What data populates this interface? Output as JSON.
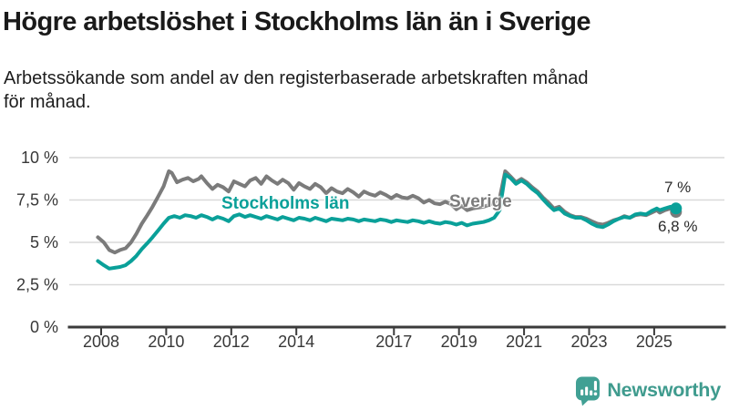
{
  "header": {
    "title": "Högre arbetslöshet i Stockholms län än i Sverige",
    "subtitle_lines": [
      "Arbetssökande som andel av den registerbaserade arbetskraften månad",
      "för månad."
    ]
  },
  "branding": {
    "name": "Newsworthy",
    "icon": "bar-chart-speech-bubble-icon",
    "brand_color": "#3F9B8E"
  },
  "colors": {
    "stockholm_line": "#0AA099",
    "sverige_line": "#7B7B7B",
    "grid": "#D9D9D9",
    "axis": "#3B3B3B"
  },
  "chart_data": {
    "type": "line",
    "unit": "%",
    "grid": "horizontal",
    "legend": "inline-labels",
    "x_range": [
      2007.9,
      2025.75
    ],
    "y_range": [
      0,
      10
    ],
    "y_ticks": [
      {
        "value": 0,
        "label": "0 %"
      },
      {
        "value": 2.5,
        "label": "2,5 %"
      },
      {
        "value": 5,
        "label": "5 %"
      },
      {
        "value": 7.5,
        "label": "7,5 %"
      },
      {
        "value": 10,
        "label": "10 %"
      }
    ],
    "x_ticks": [
      {
        "value": 2008,
        "label": "2008"
      },
      {
        "value": 2010,
        "label": "2010"
      },
      {
        "value": 2012,
        "label": "2012"
      },
      {
        "value": 2014,
        "label": "2014"
      },
      {
        "value": 2017,
        "label": "2017"
      },
      {
        "value": 2019,
        "label": "2019"
      },
      {
        "value": 2021,
        "label": "2021"
      },
      {
        "value": 2023,
        "label": "2023"
      },
      {
        "value": 2025,
        "label": "2025"
      }
    ],
    "series": [
      {
        "name": "Sverige",
        "color": "#7B7B7B",
        "end_value": 6.8,
        "end_value_label": "6,8 %",
        "points": [
          [
            2007.9,
            5.3
          ],
          [
            2008.08,
            5.0
          ],
          [
            2008.25,
            4.55
          ],
          [
            2008.42,
            4.4
          ],
          [
            2008.58,
            4.55
          ],
          [
            2008.75,
            4.65
          ],
          [
            2008.92,
            5.0
          ],
          [
            2009.08,
            5.5
          ],
          [
            2009.25,
            6.1
          ],
          [
            2009.42,
            6.6
          ],
          [
            2009.58,
            7.1
          ],
          [
            2009.75,
            7.7
          ],
          [
            2009.92,
            8.3
          ],
          [
            2010.08,
            9.2
          ],
          [
            2010.17,
            9.1
          ],
          [
            2010.33,
            8.55
          ],
          [
            2010.5,
            8.7
          ],
          [
            2010.67,
            8.8
          ],
          [
            2010.83,
            8.6
          ],
          [
            2011.0,
            8.75
          ],
          [
            2011.08,
            8.9
          ],
          [
            2011.25,
            8.5
          ],
          [
            2011.42,
            8.15
          ],
          [
            2011.58,
            8.4
          ],
          [
            2011.75,
            8.25
          ],
          [
            2011.92,
            8.0
          ],
          [
            2012.08,
            8.6
          ],
          [
            2012.25,
            8.45
          ],
          [
            2012.42,
            8.3
          ],
          [
            2012.58,
            8.65
          ],
          [
            2012.75,
            8.8
          ],
          [
            2012.92,
            8.45
          ],
          [
            2013.08,
            8.9
          ],
          [
            2013.25,
            8.65
          ],
          [
            2013.42,
            8.45
          ],
          [
            2013.58,
            8.7
          ],
          [
            2013.75,
            8.5
          ],
          [
            2013.92,
            8.1
          ],
          [
            2014.08,
            8.5
          ],
          [
            2014.25,
            8.3
          ],
          [
            2014.42,
            8.15
          ],
          [
            2014.58,
            8.45
          ],
          [
            2014.75,
            8.25
          ],
          [
            2014.92,
            7.9
          ],
          [
            2015.08,
            8.2
          ],
          [
            2015.25,
            8.0
          ],
          [
            2015.42,
            7.9
          ],
          [
            2015.58,
            8.15
          ],
          [
            2015.75,
            7.95
          ],
          [
            2015.92,
            7.7
          ],
          [
            2016.08,
            8.0
          ],
          [
            2016.25,
            7.85
          ],
          [
            2016.42,
            7.75
          ],
          [
            2016.58,
            7.95
          ],
          [
            2016.75,
            7.8
          ],
          [
            2016.92,
            7.6
          ],
          [
            2017.08,
            7.8
          ],
          [
            2017.25,
            7.65
          ],
          [
            2017.42,
            7.6
          ],
          [
            2017.58,
            7.75
          ],
          [
            2017.75,
            7.6
          ],
          [
            2017.92,
            7.35
          ],
          [
            2018.08,
            7.5
          ],
          [
            2018.25,
            7.3
          ],
          [
            2018.42,
            7.25
          ],
          [
            2018.58,
            7.4
          ],
          [
            2018.75,
            7.25
          ],
          [
            2018.92,
            6.95
          ],
          [
            2019.08,
            7.15
          ],
          [
            2019.25,
            6.9
          ],
          [
            2019.42,
            7.0
          ],
          [
            2019.58,
            7.05
          ],
          [
            2019.75,
            7.1
          ],
          [
            2019.92,
            7.2
          ],
          [
            2020.08,
            7.35
          ],
          [
            2020.25,
            7.6
          ],
          [
            2020.42,
            9.2
          ],
          [
            2020.5,
            9.05
          ],
          [
            2020.58,
            8.9
          ],
          [
            2020.75,
            8.55
          ],
          [
            2020.92,
            8.75
          ],
          [
            2021.08,
            8.55
          ],
          [
            2021.25,
            8.25
          ],
          [
            2021.42,
            8.0
          ],
          [
            2021.58,
            7.65
          ],
          [
            2021.75,
            7.35
          ],
          [
            2021.92,
            7.0
          ],
          [
            2022.08,
            7.1
          ],
          [
            2022.25,
            6.8
          ],
          [
            2022.42,
            6.6
          ],
          [
            2022.58,
            6.5
          ],
          [
            2022.75,
            6.5
          ],
          [
            2022.92,
            6.4
          ],
          [
            2023.08,
            6.25
          ],
          [
            2023.25,
            6.1
          ],
          [
            2023.42,
            6.05
          ],
          [
            2023.58,
            6.15
          ],
          [
            2023.75,
            6.3
          ],
          [
            2023.92,
            6.4
          ],
          [
            2024.08,
            6.55
          ],
          [
            2024.25,
            6.45
          ],
          [
            2024.42,
            6.6
          ],
          [
            2024.58,
            6.65
          ],
          [
            2024.75,
            6.6
          ],
          [
            2024.92,
            6.75
          ],
          [
            2025.08,
            6.9
          ],
          [
            2025.17,
            6.75
          ],
          [
            2025.33,
            6.9
          ],
          [
            2025.5,
            7.0
          ],
          [
            2025.58,
            6.95
          ],
          [
            2025.67,
            6.8
          ]
        ]
      },
      {
        "name": "Stockholms län",
        "color": "#0AA099",
        "end_value": 7.0,
        "end_value_label": "7 %",
        "points": [
          [
            2007.9,
            3.9
          ],
          [
            2008.08,
            3.65
          ],
          [
            2008.25,
            3.45
          ],
          [
            2008.42,
            3.5
          ],
          [
            2008.58,
            3.55
          ],
          [
            2008.75,
            3.65
          ],
          [
            2008.92,
            3.9
          ],
          [
            2009.08,
            4.2
          ],
          [
            2009.25,
            4.6
          ],
          [
            2009.42,
            4.95
          ],
          [
            2009.58,
            5.3
          ],
          [
            2009.75,
            5.7
          ],
          [
            2009.92,
            6.1
          ],
          [
            2010.08,
            6.45
          ],
          [
            2010.25,
            6.55
          ],
          [
            2010.42,
            6.45
          ],
          [
            2010.58,
            6.6
          ],
          [
            2010.75,
            6.55
          ],
          [
            2010.92,
            6.45
          ],
          [
            2011.08,
            6.6
          ],
          [
            2011.25,
            6.5
          ],
          [
            2011.42,
            6.35
          ],
          [
            2011.58,
            6.5
          ],
          [
            2011.75,
            6.4
          ],
          [
            2011.92,
            6.25
          ],
          [
            2012.08,
            6.55
          ],
          [
            2012.25,
            6.65
          ],
          [
            2012.42,
            6.5
          ],
          [
            2012.58,
            6.6
          ],
          [
            2012.75,
            6.5
          ],
          [
            2012.92,
            6.4
          ],
          [
            2013.08,
            6.55
          ],
          [
            2013.25,
            6.45
          ],
          [
            2013.42,
            6.35
          ],
          [
            2013.58,
            6.5
          ],
          [
            2013.75,
            6.4
          ],
          [
            2013.92,
            6.3
          ],
          [
            2014.08,
            6.45
          ],
          [
            2014.25,
            6.4
          ],
          [
            2014.42,
            6.3
          ],
          [
            2014.58,
            6.45
          ],
          [
            2014.75,
            6.35
          ],
          [
            2014.92,
            6.25
          ],
          [
            2015.08,
            6.4
          ],
          [
            2015.25,
            6.35
          ],
          [
            2015.42,
            6.3
          ],
          [
            2015.58,
            6.4
          ],
          [
            2015.75,
            6.35
          ],
          [
            2015.92,
            6.25
          ],
          [
            2016.08,
            6.35
          ],
          [
            2016.25,
            6.3
          ],
          [
            2016.42,
            6.25
          ],
          [
            2016.58,
            6.35
          ],
          [
            2016.75,
            6.3
          ],
          [
            2016.92,
            6.2
          ],
          [
            2017.08,
            6.3
          ],
          [
            2017.25,
            6.25
          ],
          [
            2017.42,
            6.2
          ],
          [
            2017.58,
            6.3
          ],
          [
            2017.75,
            6.25
          ],
          [
            2017.92,
            6.15
          ],
          [
            2018.08,
            6.25
          ],
          [
            2018.25,
            6.15
          ],
          [
            2018.42,
            6.1
          ],
          [
            2018.58,
            6.2
          ],
          [
            2018.75,
            6.15
          ],
          [
            2018.92,
            6.05
          ],
          [
            2019.08,
            6.15
          ],
          [
            2019.25,
            6.0
          ],
          [
            2019.42,
            6.1
          ],
          [
            2019.58,
            6.15
          ],
          [
            2019.75,
            6.2
          ],
          [
            2019.92,
            6.3
          ],
          [
            2020.08,
            6.45
          ],
          [
            2020.25,
            6.9
          ],
          [
            2020.42,
            9.0
          ],
          [
            2020.5,
            8.9
          ],
          [
            2020.58,
            8.8
          ],
          [
            2020.75,
            8.45
          ],
          [
            2020.92,
            8.65
          ],
          [
            2021.08,
            8.45
          ],
          [
            2021.25,
            8.15
          ],
          [
            2021.42,
            7.9
          ],
          [
            2021.58,
            7.55
          ],
          [
            2021.75,
            7.2
          ],
          [
            2021.92,
            6.9
          ],
          [
            2022.08,
            7.0
          ],
          [
            2022.25,
            6.7
          ],
          [
            2022.42,
            6.55
          ],
          [
            2022.58,
            6.45
          ],
          [
            2022.75,
            6.45
          ],
          [
            2022.92,
            6.3
          ],
          [
            2023.08,
            6.1
          ],
          [
            2023.25,
            5.95
          ],
          [
            2023.42,
            5.9
          ],
          [
            2023.58,
            6.05
          ],
          [
            2023.75,
            6.25
          ],
          [
            2023.92,
            6.4
          ],
          [
            2024.08,
            6.5
          ],
          [
            2024.25,
            6.45
          ],
          [
            2024.42,
            6.65
          ],
          [
            2024.58,
            6.7
          ],
          [
            2024.75,
            6.65
          ],
          [
            2024.92,
            6.85
          ],
          [
            2025.08,
            7.0
          ],
          [
            2025.17,
            6.9
          ],
          [
            2025.33,
            7.0
          ],
          [
            2025.5,
            7.1
          ],
          [
            2025.58,
            7.05
          ],
          [
            2025.67,
            7.0
          ]
        ]
      }
    ]
  }
}
